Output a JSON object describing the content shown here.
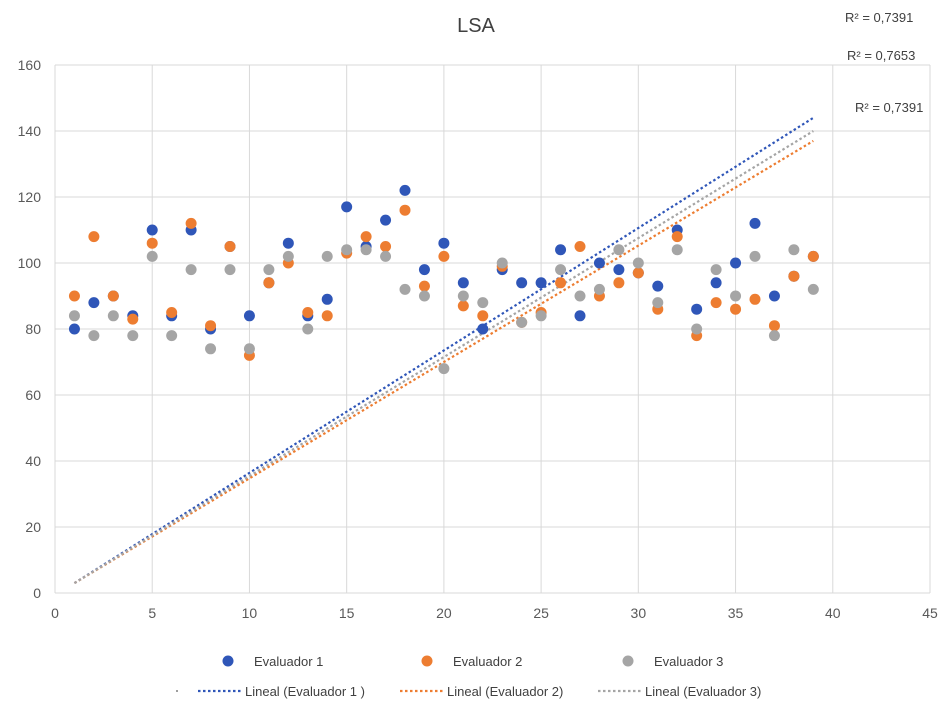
{
  "chart_data": {
    "type": "scatter",
    "title": "LSA",
    "xlim": [
      0,
      45
    ],
    "ylim": [
      0,
      160
    ],
    "x_ticks": [
      "0",
      "5",
      "10",
      "15",
      "20",
      "25",
      "30",
      "35",
      "40",
      "45"
    ],
    "y_ticks": [
      "0",
      "20",
      "40",
      "60",
      "80",
      "100",
      "120",
      "140",
      "160"
    ],
    "grid": true,
    "legend_position": "bottom",
    "series": [
      {
        "name": "Evaluador 1",
        "color": "#2F56B8",
        "x": [
          1,
          2,
          3,
          4,
          5,
          6,
          7,
          8,
          9,
          10,
          11,
          12,
          13,
          14,
          15,
          16,
          17,
          18,
          19,
          20,
          21,
          22,
          23,
          24,
          25,
          26,
          27,
          28,
          29,
          30,
          31,
          32,
          33,
          34,
          35,
          36,
          37,
          38,
          39
        ],
        "y": [
          80,
          88,
          90,
          84,
          110,
          84,
          110,
          80,
          105,
          84,
          94,
          106,
          84,
          89,
          117,
          105,
          113,
          122,
          98,
          106,
          94,
          80,
          98,
          94,
          94,
          104,
          84,
          100,
          98,
          97,
          93,
          110,
          86,
          94,
          100,
          112,
          90,
          96,
          102
        ]
      },
      {
        "name": "Evaluador 2",
        "color": "#ED7D31",
        "x": [
          1,
          2,
          3,
          4,
          5,
          6,
          7,
          8,
          9,
          10,
          11,
          12,
          13,
          14,
          15,
          16,
          17,
          18,
          19,
          20,
          21,
          22,
          23,
          24,
          25,
          26,
          27,
          28,
          29,
          30,
          31,
          32,
          33,
          34,
          35,
          36,
          37,
          38,
          39
        ],
        "y": [
          90,
          108,
          90,
          83,
          106,
          85,
          112,
          81,
          105,
          72,
          94,
          100,
          85,
          84,
          103,
          108,
          105,
          116,
          93,
          102,
          87,
          84,
          99,
          82,
          85,
          94,
          105,
          90,
          94,
          97,
          86,
          108,
          78,
          88,
          86,
          89,
          81,
          96,
          102
        ]
      },
      {
        "name": "Evaluador 3",
        "color": "#A5A5A5",
        "x": [
          1,
          2,
          3,
          4,
          5,
          6,
          7,
          8,
          9,
          10,
          11,
          12,
          13,
          14,
          15,
          16,
          17,
          18,
          19,
          20,
          21,
          22,
          23,
          24,
          25,
          26,
          27,
          28,
          29,
          30,
          31,
          32,
          33,
          34,
          35,
          36,
          37,
          38,
          39
        ],
        "y": [
          84,
          78,
          84,
          78,
          102,
          78,
          98,
          74,
          98,
          74,
          98,
          102,
          80,
          102,
          104,
          104,
          102,
          92,
          90,
          68,
          90,
          88,
          100,
          82,
          84,
          98,
          90,
          92,
          104,
          100,
          88,
          104,
          80,
          98,
          90,
          102,
          78,
          104,
          92
        ]
      }
    ],
    "trendlines": [
      {
        "name": "Lineal (Evaluador 1 )",
        "color": "#2F56B8",
        "x": [
          1,
          39
        ],
        "y": [
          3,
          144
        ]
      },
      {
        "name": "Lineal (Evaluador 2)",
        "color": "#ED7D31",
        "x": [
          1,
          39
        ],
        "y": [
          3,
          137
        ]
      },
      {
        "name": "Lineal (Evaluador 3)",
        "color": "#A5A5A5",
        "x": [
          1,
          39
        ],
        "y": [
          3,
          140
        ]
      }
    ],
    "annotations": [
      "R² = 0,7391",
      "R² = 0,7653",
      "R² = 0,7391"
    ]
  }
}
